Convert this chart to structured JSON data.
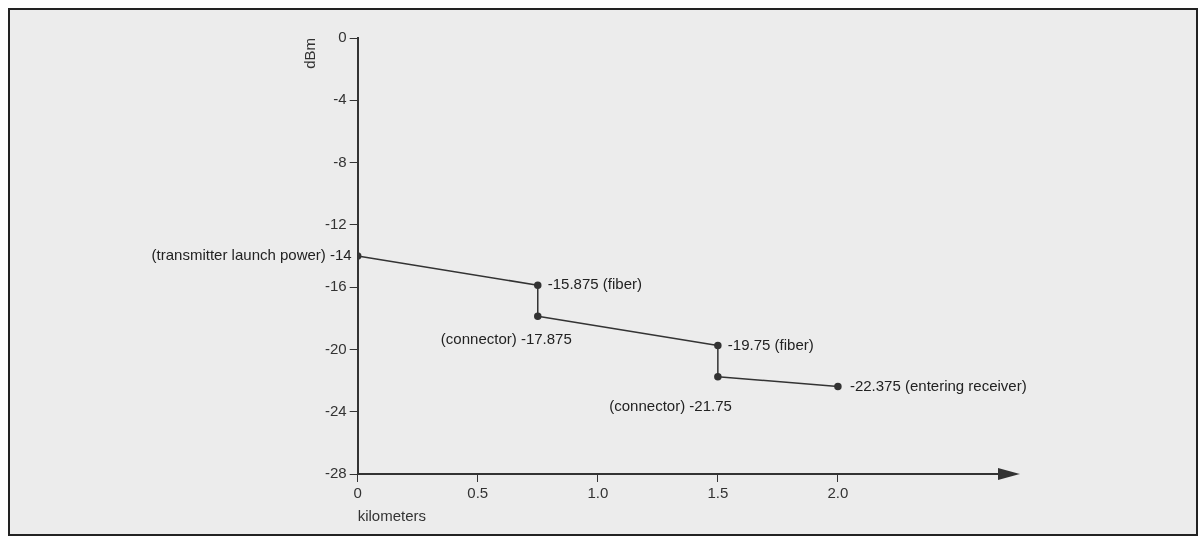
{
  "chart_data": {
    "type": "line",
    "xlabel": "kilometers",
    "ylabel": "dBm",
    "series": [
      {
        "color": "#333333",
        "x": [
          0,
          0.75,
          0.75,
          1.5,
          1.5,
          2.0
        ],
        "values": [
          -14,
          -15.875,
          -17.875,
          -19.75,
          -21.75,
          -22.375
        ]
      }
    ],
    "xlim": [
      0,
      2.7
    ],
    "xticks": [
      0,
      {
        "value": 0.5,
        "label": "0.5"
      },
      {
        "value": 1,
        "label": "1.0"
      },
      {
        "value": 1.5,
        "label": "1.5"
      },
      {
        "value": 2,
        "label": "2.0"
      }
    ],
    "ylim": [
      -28,
      0
    ],
    "yticks": [
      0,
      -4,
      -8,
      -12,
      -16,
      -20,
      -24,
      -28
    ],
    "grid": false,
    "legend": false,
    "marker": "circle",
    "line_style": "solid",
    "annotations": [
      {
        "text": "(transmitter launch power) -14",
        "x": 0,
        "y": -14
      },
      {
        "text": "-15.875 (fiber)",
        "x": 0.75,
        "y": -15.875
      },
      {
        "text": "(connector) -17.875",
        "x": 0.75,
        "y": -17.875
      },
      {
        "text": "-19.75 (fiber)",
        "x": 1.5,
        "y": -19.75
      },
      {
        "text": "(connector) -21.75",
        "x": 1.5,
        "y": -21.75
      },
      {
        "text": "-22.375 (entering receiver)",
        "x": 2.0,
        "y": -22.375
      }
    ]
  }
}
